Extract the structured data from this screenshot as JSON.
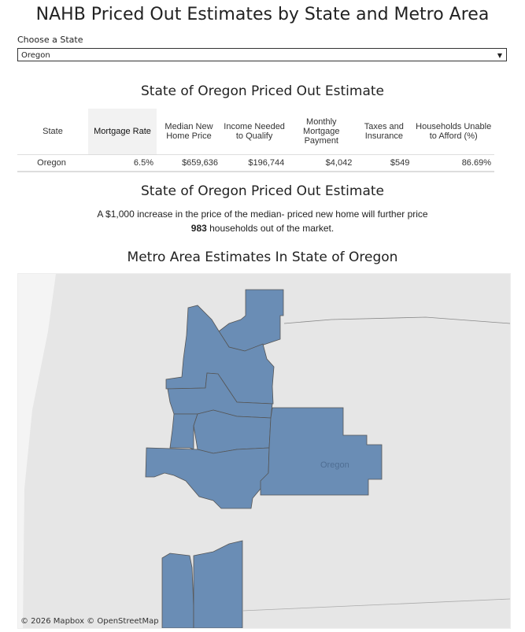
{
  "title": "NAHB Priced Out Estimates by State and Metro Area",
  "filter": {
    "label": "Choose a State",
    "value": "Oregon"
  },
  "table_section": {
    "title": "State of Oregon Priced Out Estimate",
    "headers": [
      "State",
      "Mortgage Rate",
      "Median New Home Price",
      "Income Needed to Qualify",
      "Monthly Mortgage Payment",
      "Taxes and Insurance",
      "Households Unable to Afford (%)"
    ],
    "row": [
      "Oregon",
      "6.5%",
      "$659,636",
      "$196,744",
      "$4,042",
      "$549",
      "86.69%"
    ]
  },
  "impact": {
    "title": "State of Oregon Priced Out Estimate",
    "line1": "A $1,000 increase in the price of  the median- priced new home will further price",
    "count": "983",
    "line2": " households out of the market."
  },
  "map": {
    "title": "Metro Area Estimates In State of Oregon",
    "state_label": "Oregon",
    "attribution": "© 2026 Mapbox  © OpenStreetMap",
    "fill_color": "#6a8db5"
  }
}
